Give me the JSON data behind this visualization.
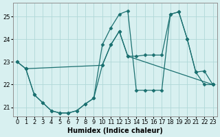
{
  "xlabel": "Humidex (Indice chaleur)",
  "background_color": "#d8f0f0",
  "grid_color": "#b0d8d8",
  "line_color": "#1a7070",
  "xlim": [
    -0.5,
    23.5
  ],
  "ylim": [
    20.6,
    25.6
  ],
  "yticks": [
    21,
    22,
    23,
    24,
    25
  ],
  "xticks": [
    0,
    1,
    2,
    3,
    4,
    5,
    6,
    7,
    8,
    9,
    10,
    11,
    12,
    13,
    14,
    15,
    16,
    17,
    18,
    19,
    20,
    21,
    22,
    23
  ],
  "series": [
    {
      "x": [
        0,
        1,
        2,
        3,
        4,
        5,
        6,
        7,
        8,
        9,
        10,
        11,
        12,
        13,
        14,
        15,
        16,
        17,
        18,
        19,
        20,
        21,
        22,
        23
      ],
      "y": [
        23.0,
        22.7,
        21.55,
        21.2,
        20.85,
        20.75,
        20.75,
        20.85,
        21.15,
        21.4,
        23.75,
        24.5,
        25.1,
        25.25,
        21.75,
        21.75,
        21.75,
        21.75,
        25.1,
        25.2,
        24.0,
        22.55,
        22.0,
        22.0
      ]
    },
    {
      "x": [
        0,
        1,
        10,
        11,
        12,
        13,
        14,
        15,
        16,
        17,
        18,
        19,
        20,
        21,
        22,
        23
      ],
      "y": [
        23.0,
        22.7,
        22.85,
        23.75,
        24.35,
        23.25,
        23.25,
        23.3,
        23.3,
        23.3,
        25.1,
        25.2,
        24.0,
        22.55,
        22.6,
        22.0
      ]
    },
    {
      "x": [
        1,
        2,
        3,
        4,
        5,
        6,
        7,
        8,
        9,
        10,
        11,
        12,
        13,
        23
      ],
      "y": [
        22.7,
        21.55,
        21.2,
        20.85,
        20.75,
        20.75,
        20.85,
        21.15,
        21.4,
        22.85,
        23.75,
        24.35,
        23.25,
        22.0
      ]
    }
  ]
}
